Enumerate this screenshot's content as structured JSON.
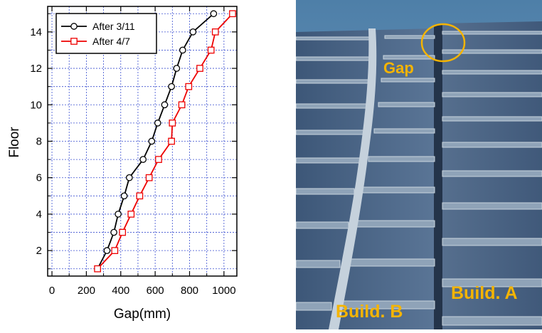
{
  "chart_data": {
    "type": "line",
    "xlabel": "Gap(mm)",
    "ylabel": "Floor",
    "xlim": [
      -25,
      1075
    ],
    "ylim": [
      0.6,
      15.4
    ],
    "xticks": [
      0,
      200,
      400,
      600,
      800,
      1000
    ],
    "yticks": [
      2,
      4,
      6,
      8,
      10,
      12,
      14
    ],
    "grid": true,
    "legend_position": "top-left",
    "series": [
      {
        "name": "After 3/11",
        "color": "#000000",
        "marker": "circle",
        "points": [
          [
            265,
            1
          ],
          [
            320,
            2
          ],
          [
            360,
            3
          ],
          [
            385,
            4
          ],
          [
            420,
            5
          ],
          [
            450,
            6
          ],
          [
            530,
            7
          ],
          [
            580,
            8
          ],
          [
            615,
            9
          ],
          [
            655,
            10
          ],
          [
            695,
            11
          ],
          [
            725,
            12
          ],
          [
            760,
            13
          ],
          [
            820,
            14
          ],
          [
            940,
            15
          ]
        ]
      },
      {
        "name": "After 4/7",
        "color": "#ee0000",
        "marker": "square",
        "points": [
          [
            265,
            1
          ],
          [
            365,
            2
          ],
          [
            410,
            3
          ],
          [
            460,
            4
          ],
          [
            510,
            5
          ],
          [
            565,
            6
          ],
          [
            620,
            7
          ],
          [
            695,
            8
          ],
          [
            700,
            9
          ],
          [
            755,
            10
          ],
          [
            795,
            11
          ],
          [
            860,
            12
          ],
          [
            925,
            13
          ],
          [
            950,
            14
          ],
          [
            1050,
            15
          ]
        ]
      }
    ]
  },
  "photo": {
    "gap_label": "Gap",
    "building_b_label": "Build. B",
    "building_a_label": "Build. A"
  }
}
